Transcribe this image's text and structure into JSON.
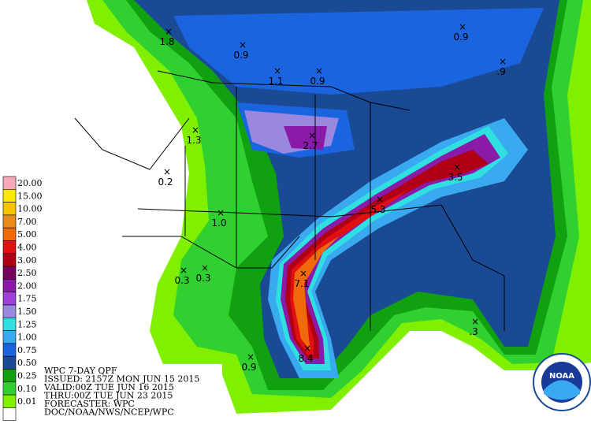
{
  "header": {
    "lines": [
      "WPC 7-DAY QPF",
      "ISSUED: 2157Z MON JUN 15 2015",
      "VALID:00Z TUE JUN 16 2015",
      "THRU:00Z TUE JUN 23 2015",
      "FORECASTER: WPC",
      "DOC/NOAA/NWS/NCEP/WPC"
    ]
  },
  "legend": [
    {
      "label": "20.00",
      "color": "#f7a8b8"
    },
    {
      "label": "15.00",
      "color": "#fbe900"
    },
    {
      "label": "10.00",
      "color": "#f6c400"
    },
    {
      "label": "7.00",
      "color": "#e88a1c"
    },
    {
      "label": "5.00",
      "color": "#f06a0c"
    },
    {
      "label": "4.00",
      "color": "#e01010"
    },
    {
      "label": "3.00",
      "color": "#b00018"
    },
    {
      "label": "2.50",
      "color": "#7a0060"
    },
    {
      "label": "2.00",
      "color": "#8a1aa8"
    },
    {
      "label": "1.75",
      "color": "#a040d8"
    },
    {
      "label": "1.50",
      "color": "#9a88e0"
    },
    {
      "label": "1.25",
      "color": "#30e0e0"
    },
    {
      "label": "1.00",
      "color": "#3aaaf0"
    },
    {
      "label": "0.75",
      "color": "#1a64e0"
    },
    {
      "label": "0.50",
      "color": "#1a4a94"
    },
    {
      "label": "0.25",
      "color": "#10a010"
    },
    {
      "label": "0.10",
      "color": "#30d030"
    },
    {
      "label": "0.01",
      "color": "#80f000"
    },
    {
      "color": "#ffffff"
    }
  ],
  "maxima": [
    "1.8",
    "0.9",
    "1.1",
    "0.9",
    "0.9",
    ".9",
    "1.3",
    "2.7",
    "0.2",
    "3.5",
    "5.3",
    "1.0",
    "0.3",
    "0.3",
    "7.1",
    ".3",
    "0.9",
    "8.4"
  ],
  "logo": "NOAA"
}
